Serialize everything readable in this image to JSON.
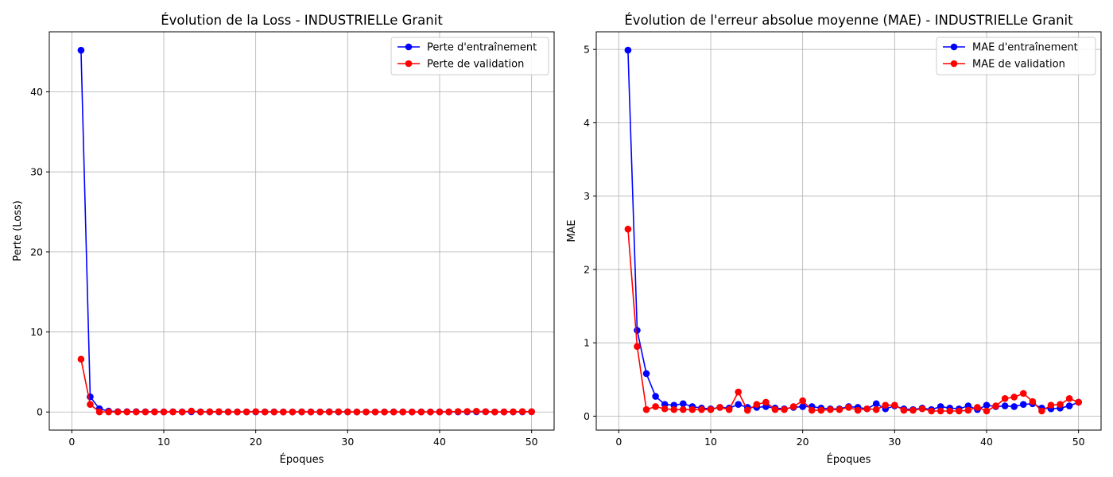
{
  "chart_data": [
    {
      "type": "line",
      "title": "Évolution de la Loss - INDUSTRIELLe Granit",
      "xlabel": "Époques",
      "ylabel": "Perte (Loss)",
      "xlim": [
        -2.45,
        52.45
      ],
      "ylim": [
        -2.26,
        47.5
      ],
      "xticks": [
        0,
        10,
        20,
        30,
        40,
        50
      ],
      "yticks": [
        0,
        10,
        20,
        30,
        40
      ],
      "grid": true,
      "legend": "top-right",
      "x": [
        1,
        2,
        3,
        4,
        5,
        6,
        7,
        8,
        9,
        10,
        11,
        12,
        13,
        14,
        15,
        16,
        17,
        18,
        19,
        20,
        21,
        22,
        23,
        24,
        25,
        26,
        27,
        28,
        29,
        30,
        31,
        32,
        33,
        34,
        35,
        36,
        37,
        38,
        39,
        40,
        41,
        42,
        43,
        44,
        45,
        46,
        47,
        48,
        49,
        50
      ],
      "series": [
        {
          "name": "Perte d'entraînement",
          "color": "#0000ff",
          "values": [
            45.2,
            1.9,
            0.4,
            0.12,
            0.05,
            0.04,
            0.04,
            0.03,
            0.03,
            0.02,
            0.03,
            0.02,
            0.03,
            0.02,
            0.02,
            0.02,
            0.02,
            0.02,
            0.02,
            0.02,
            0.02,
            0.02,
            0.01,
            0.01,
            0.02,
            0.02,
            0.01,
            0.03,
            0.01,
            0.02,
            0.01,
            0.01,
            0.01,
            0.01,
            0.02,
            0.01,
            0.01,
            0.02,
            0.01,
            0.02,
            0.02,
            0.02,
            0.02,
            0.03,
            0.03,
            0.01,
            0.01,
            0.01,
            0.02,
            0.03
          ]
        },
        {
          "name": "Perte de validation",
          "color": "#ff0000",
          "values": [
            6.6,
            0.95,
            0.01,
            0.02,
            0.01,
            0.01,
            0.01,
            0.01,
            0.01,
            0.01,
            0.02,
            0.01,
            0.12,
            0.01,
            0.03,
            0.04,
            0.01,
            0.01,
            0.02,
            0.05,
            0.01,
            0.01,
            0.01,
            0.01,
            0.02,
            0.01,
            0.01,
            0.01,
            0.03,
            0.02,
            0.01,
            0.01,
            0.01,
            0.01,
            0.01,
            0.01,
            0.01,
            0.01,
            0.01,
            0.01,
            0.02,
            0.06,
            0.07,
            0.1,
            0.04,
            0.01,
            0.02,
            0.03,
            0.06,
            0.04
          ]
        }
      ]
    },
    {
      "type": "line",
      "title": "Évolution de l'erreur absolue moyenne (MAE) - INDUSTRIELLe Granit",
      "xlabel": "Époques",
      "ylabel": "MAE",
      "xlim": [
        -2.45,
        52.45
      ],
      "ylim": [
        -0.19,
        5.24
      ],
      "xticks": [
        0,
        10,
        20,
        30,
        40,
        50
      ],
      "yticks": [
        0,
        1,
        2,
        3,
        4,
        5
      ],
      "grid": true,
      "legend": "top-right",
      "x": [
        1,
        2,
        3,
        4,
        5,
        6,
        7,
        8,
        9,
        10,
        11,
        12,
        13,
        14,
        15,
        16,
        17,
        18,
        19,
        20,
        21,
        22,
        23,
        24,
        25,
        26,
        27,
        28,
        29,
        30,
        31,
        32,
        33,
        34,
        35,
        36,
        37,
        38,
        39,
        40,
        41,
        42,
        43,
        44,
        45,
        46,
        47,
        48,
        49,
        50
      ],
      "series": [
        {
          "name": "MAE d'entraînement",
          "color": "#0000ff",
          "values": [
            4.99,
            1.17,
            0.58,
            0.27,
            0.16,
            0.15,
            0.17,
            0.13,
            0.11,
            0.1,
            0.12,
            0.11,
            0.16,
            0.12,
            0.12,
            0.13,
            0.11,
            0.1,
            0.12,
            0.13,
            0.13,
            0.11,
            0.1,
            0.1,
            0.13,
            0.12,
            0.1,
            0.17,
            0.1,
            0.14,
            0.1,
            0.09,
            0.11,
            0.09,
            0.13,
            0.11,
            0.1,
            0.14,
            0.09,
            0.15,
            0.13,
            0.14,
            0.13,
            0.16,
            0.17,
            0.11,
            0.1,
            0.11,
            0.14,
            0.19
          ]
        },
        {
          "name": "MAE de validation",
          "color": "#ff0000",
          "values": [
            2.55,
            0.95,
            0.09,
            0.13,
            0.1,
            0.09,
            0.09,
            0.09,
            0.09,
            0.09,
            0.12,
            0.09,
            0.33,
            0.08,
            0.16,
            0.19,
            0.09,
            0.09,
            0.13,
            0.21,
            0.08,
            0.08,
            0.09,
            0.09,
            0.12,
            0.08,
            0.1,
            0.09,
            0.15,
            0.15,
            0.08,
            0.08,
            0.1,
            0.07,
            0.07,
            0.07,
            0.07,
            0.08,
            0.12,
            0.07,
            0.14,
            0.24,
            0.26,
            0.31,
            0.2,
            0.07,
            0.15,
            0.16,
            0.24,
            0.19
          ]
        }
      ]
    }
  ]
}
